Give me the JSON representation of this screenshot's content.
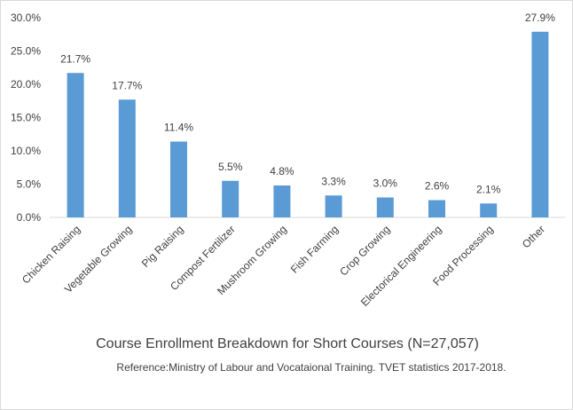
{
  "chart_data": {
    "type": "bar",
    "title": "Course Enrollment Breakdown for Short Courses (N=27,057)",
    "subtitle": "Reference:Ministry of Labour and Vocataional Training. TVET statistics 2017-2018.",
    "categories": [
      "Chicken Raising",
      "Vegetable Growing",
      "Pig Raising",
      "Compost Fertilizer",
      "Mushroom Growing",
      "Fish Farming",
      "Crop Growing",
      "Electorical Engineering",
      "Food Processing",
      "Other"
    ],
    "values": [
      21.7,
      17.7,
      11.4,
      5.5,
      4.8,
      3.3,
      3.0,
      2.6,
      2.1,
      27.9
    ],
    "data_labels": [
      "21.7%",
      "17.7%",
      "11.4%",
      "5.5%",
      "4.8%",
      "3.3%",
      "3.0%",
      "2.6%",
      "2.1%",
      "27.9%"
    ],
    "ylim": [
      0,
      30
    ],
    "yticks": [
      0,
      5,
      10,
      15,
      20,
      25,
      30
    ],
    "ytick_labels": [
      "0.0%",
      "5.0%",
      "10.0%",
      "15.0%",
      "20.0%",
      "25.0%",
      "30.0%"
    ],
    "bar_color": "#5b9bd5",
    "grid": false,
    "legend": "none"
  }
}
